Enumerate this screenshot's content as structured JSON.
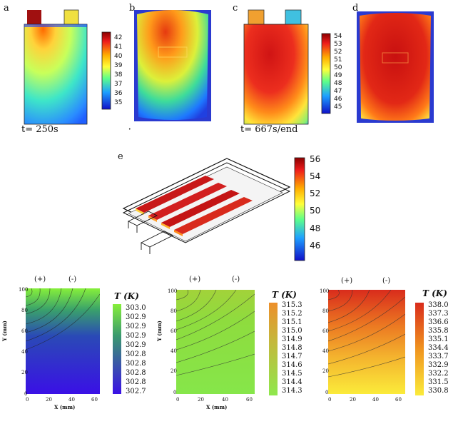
{
  "panels_top": [
    {
      "letter": "a",
      "time_label": "t= 250s"
    },
    {
      "letter": "b"
    },
    {
      "letter": "c",
      "time_label": "t= 667s/end"
    },
    {
      "letter": "d"
    }
  ],
  "colorbar_left": {
    "ticks": [
      "42",
      "41",
      "40",
      "39",
      "38",
      "37",
      "36",
      "35"
    ]
  },
  "colorbar_right": {
    "ticks": [
      "54",
      "53",
      "52",
      "51",
      "50",
      "49",
      "48",
      "47",
      "46",
      "45"
    ]
  },
  "panel_e": {
    "letter": "e",
    "colorbar_ticks": [
      "56",
      "54",
      "52",
      "50",
      "48",
      "46"
    ]
  },
  "bottom_plots": [
    {
      "polarity_pos": "(+)",
      "polarity_neg": "(-)",
      "legend_title": "T (K)",
      "ticks": [
        "303.0",
        "302.9",
        "302.9",
        "302.9",
        "302.9",
        "302.8",
        "302.8",
        "302.8",
        "302.8",
        "302.7"
      ],
      "y_ticks": [
        "100",
        "80",
        "60",
        "40",
        "20",
        "0"
      ],
      "x_ticks": [
        "0",
        "20",
        "40",
        "60"
      ],
      "y_title": "Y (mm)",
      "x_title": "X (mm)",
      "colors": {
        "top": "#86ef3a",
        "bottom": "#3a10e6"
      }
    },
    {
      "polarity_pos": "(+)",
      "polarity_neg": "(-)",
      "legend_title": "T (K)",
      "ticks": [
        "315.3",
        "315.2",
        "315.1",
        "315.0",
        "314.9",
        "314.8",
        "314.7",
        "314.6",
        "314.5",
        "314.4",
        "314.3"
      ],
      "y_ticks": [
        "100",
        "80",
        "60",
        "40",
        "20",
        "0"
      ],
      "x_ticks": [
        "0",
        "20",
        "40",
        "60"
      ],
      "y_title": "Y (mm)",
      "x_title": "X (mm)",
      "colors": {
        "top": "#ed8f2a",
        "bottom": "#8ee84d"
      }
    },
    {
      "polarity_pos": "(+)",
      "polarity_neg": "(-)",
      "legend_title": "T (K)",
      "ticks": [
        "338.0",
        "337.3",
        "336.6",
        "335.8",
        "335.1",
        "334.4",
        "333.7",
        "332.9",
        "332.2",
        "331.5",
        "330.8"
      ],
      "y_ticks": [
        "100",
        "80",
        "60",
        "40",
        "20",
        "0"
      ],
      "x_ticks": [
        "0",
        "20",
        "40",
        "60"
      ],
      "y_title": "",
      "x_title": "",
      "colors": {
        "top": "#d92c1c",
        "bottom": "#fbeb3a"
      }
    }
  ]
}
